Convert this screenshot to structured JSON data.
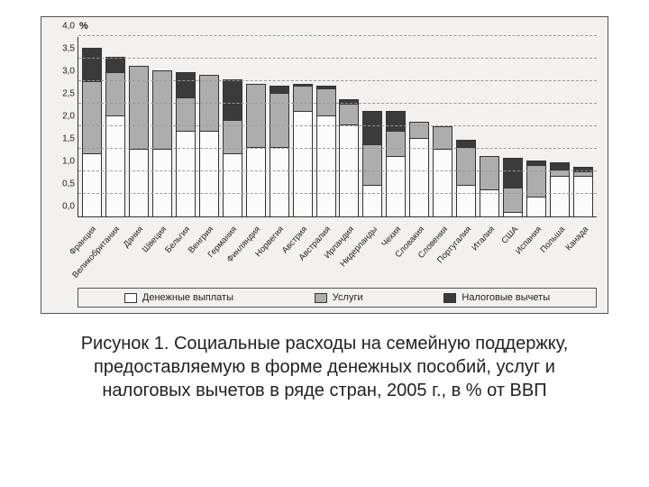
{
  "chart": {
    "type": "stacked-bar",
    "y_unit_label": "%",
    "background_color": "#f2f1f0",
    "border_color": "#555555",
    "axis_color": "#333333",
    "grid_color": "#999999",
    "label_fontsize": 10,
    "ylim": [
      0.0,
      4.0
    ],
    "ytick_step": 0.5,
    "yticks": [
      "0,0",
      "0,5",
      "1,0",
      "1,5",
      "2,0",
      "2,5",
      "3,0",
      "3,5",
      "4,0"
    ],
    "series": [
      {
        "key": "cash",
        "label": "Денежные выплаты",
        "color": "#fbfbfb",
        "border": "#333333"
      },
      {
        "key": "services",
        "label": "Услуги",
        "color": "#adadad",
        "border": "#333333"
      },
      {
        "key": "tax",
        "label": "Налоговые вычеты",
        "color": "#3b3b3b",
        "border": "#333333"
      }
    ],
    "categories": [
      {
        "label": "Франция",
        "cash": 1.4,
        "services": 1.6,
        "tax": 0.75
      },
      {
        "label": "Великобритания",
        "cash": 2.25,
        "services": 0.95,
        "tax": 0.35
      },
      {
        "label": "Дания",
        "cash": 1.5,
        "services": 1.85,
        "tax": 0.0
      },
      {
        "label": "Швеция",
        "cash": 1.5,
        "services": 1.75,
        "tax": 0.0
      },
      {
        "label": "Бельгия",
        "cash": 1.9,
        "services": 0.75,
        "tax": 0.55
      },
      {
        "label": "Венгрия",
        "cash": 1.9,
        "services": 1.25,
        "tax": 0.0
      },
      {
        "label": "Германия",
        "cash": 1.4,
        "services": 0.75,
        "tax": 0.9
      },
      {
        "label": "Финляндия",
        "cash": 1.55,
        "services": 1.4,
        "tax": 0.0
      },
      {
        "label": "Норвегия",
        "cash": 1.55,
        "services": 1.2,
        "tax": 0.15
      },
      {
        "label": "Австрия",
        "cash": 2.35,
        "services": 0.55,
        "tax": 0.05
      },
      {
        "label": "Австралия",
        "cash": 2.25,
        "services": 0.6,
        "tax": 0.05
      },
      {
        "label": "Ирландия",
        "cash": 2.05,
        "services": 0.45,
        "tax": 0.1
      },
      {
        "label": "Нидерланды",
        "cash": 0.7,
        "services": 0.9,
        "tax": 0.75
      },
      {
        "label": "Чехия",
        "cash": 1.35,
        "services": 0.55,
        "tax": 0.45
      },
      {
        "label": "Словакия",
        "cash": 1.75,
        "services": 0.35,
        "tax": 0.0
      },
      {
        "label": "Словения",
        "cash": 1.5,
        "services": 0.5,
        "tax": 0.0
      },
      {
        "label": "Португалия",
        "cash": 0.7,
        "services": 0.85,
        "tax": 0.15
      },
      {
        "label": "Италия",
        "cash": 0.6,
        "services": 0.75,
        "tax": 0.0
      },
      {
        "label": "США",
        "cash": 0.1,
        "services": 0.55,
        "tax": 0.65
      },
      {
        "label": "Испания",
        "cash": 0.45,
        "services": 0.7,
        "tax": 0.1
      },
      {
        "label": "Польша",
        "cash": 0.9,
        "services": 0.15,
        "tax": 0.15
      },
      {
        "label": "Канада",
        "cash": 0.9,
        "services": 0.1,
        "tax": 0.1
      }
    ]
  },
  "caption": "Рисунок 1. Социальные расходы на семейную поддержку, предоставляемую в форме денежных пособий, услуг и налоговых вычетов в ряде стран, 2005 г., в % от ВВП"
}
